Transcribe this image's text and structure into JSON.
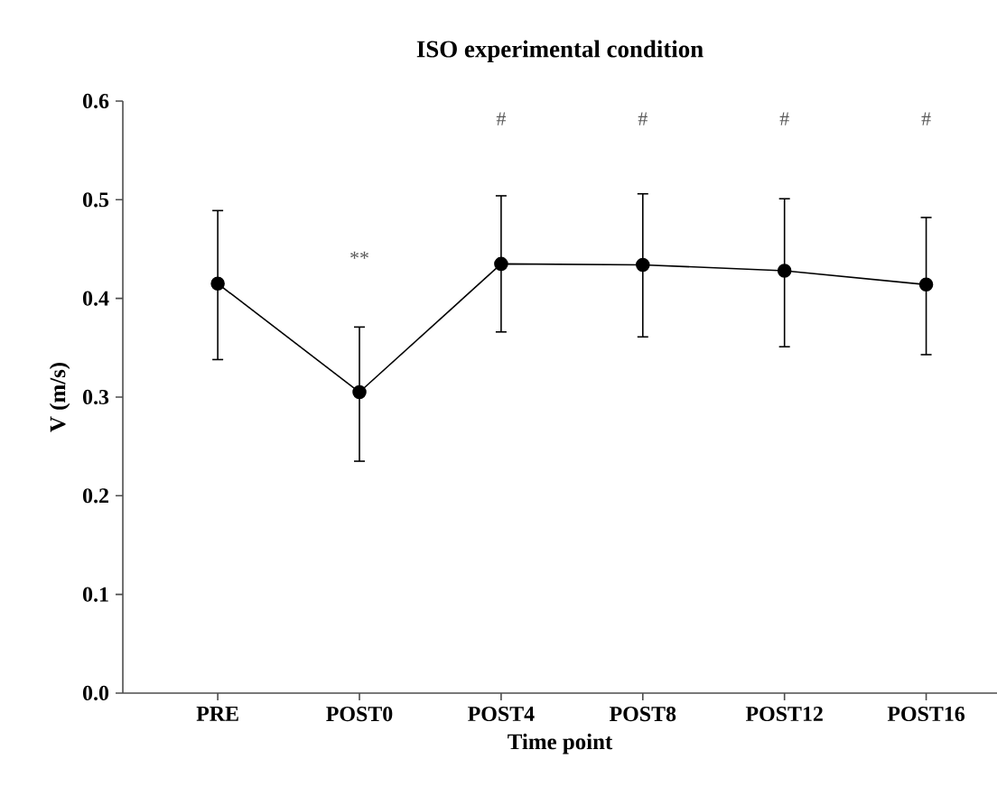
{
  "chart_data": {
    "type": "line",
    "title": "ISO experimental condition",
    "xlabel": "Time point",
    "ylabel": "V (m/s)",
    "categories": [
      "PRE",
      "POST0",
      "POST4",
      "POST8",
      "POST12",
      "POST16"
    ],
    "series": [
      {
        "color": "#000000",
        "values": [
          0.415,
          0.305,
          0.435,
          0.434,
          0.428,
          0.414
        ],
        "errors": [
          [
            0.338,
            0.489
          ],
          [
            0.235,
            0.371
          ],
          [
            0.366,
            0.504
          ],
          [
            0.361,
            0.506
          ],
          [
            0.351,
            0.501
          ],
          [
            0.343,
            0.482
          ]
        ]
      }
    ],
    "ylim": [
      0,
      0.6
    ],
    "yticks": [
      {
        "value": 0,
        "label": "0.0"
      },
      0.1,
      0.2,
      0.3,
      0.4,
      0.5,
      0.6
    ],
    "marker": "circle",
    "line_style": "solid",
    "grid": false,
    "annotations": [
      "**",
      "#",
      "#",
      "#",
      "#"
    ]
  }
}
